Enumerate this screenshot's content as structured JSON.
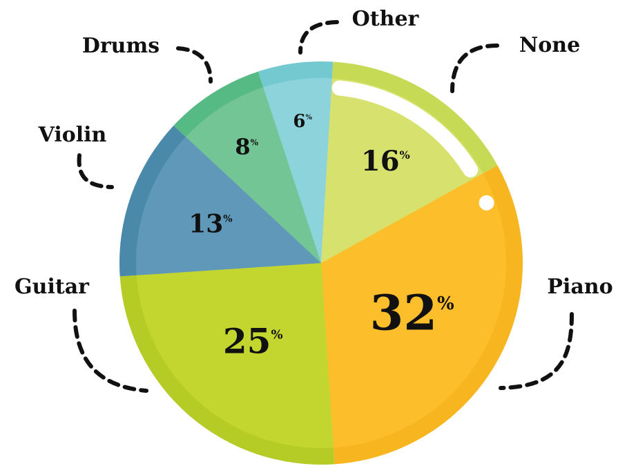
{
  "chart_data": {
    "type": "pie",
    "title": "",
    "unit": "%",
    "categories": [
      "Piano",
      "Guitar",
      "Violin",
      "Drums",
      "Other",
      "None"
    ],
    "values": [
      32,
      25,
      13,
      8,
      6,
      16
    ],
    "slices": [
      {
        "label": "Piano",
        "value": 32,
        "value_text": "32",
        "color": "#FDBE2C",
        "rim_color": "#F7B520"
      },
      {
        "label": "Guitar",
        "value": 25,
        "value_text": "25",
        "color": "#C3D62F",
        "rim_color": "#B5CC27"
      },
      {
        "label": "Violin",
        "value": 13,
        "value_text": "13",
        "color": "#5F98B8",
        "rim_color": "#4A89A9"
      },
      {
        "label": "Drums",
        "value": 8,
        "value_text": "8",
        "color": "#74C596",
        "rim_color": "#55BA83"
      },
      {
        "label": "Other",
        "value": 6,
        "value_text": "6",
        "color": "#8DD3DB",
        "rim_color": "#74C9D1"
      },
      {
        "label": "None",
        "value": 16,
        "value_text": "16",
        "color": "#D6E26D",
        "rim_color": "#C7DA55"
      }
    ],
    "percent_sign": "%",
    "legend": "callout labels"
  }
}
